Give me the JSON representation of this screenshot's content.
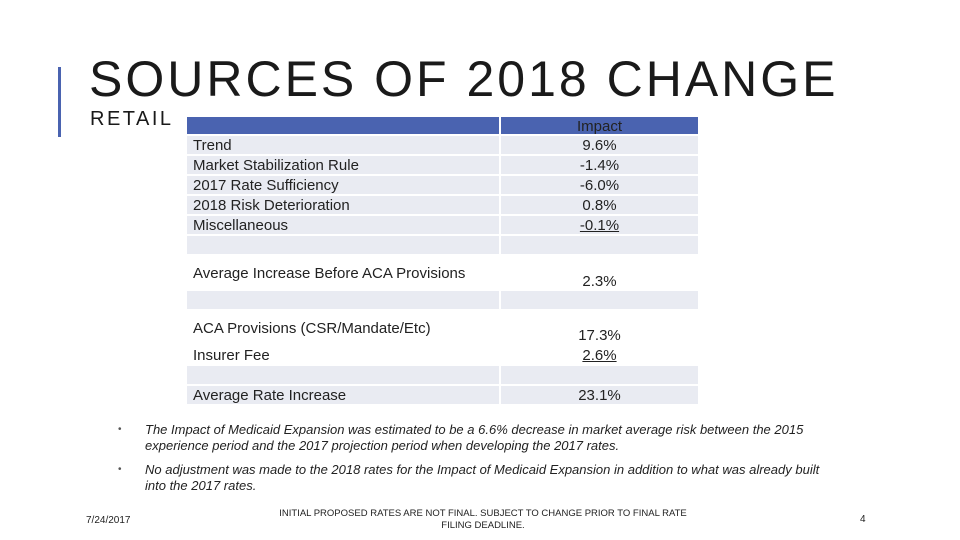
{
  "slide": {
    "title": "SOURCES OF 2018 CHANGE",
    "subtitle": "RETAIL"
  },
  "table": {
    "header": {
      "left": "",
      "right": "Impact"
    },
    "components_labels": [
      "Trend",
      "Market Stabilization Rule",
      "2017 Rate Sufficiency",
      "2018 Risk Deterioration",
      "Miscellaneous"
    ],
    "components_values": [
      "9.6%",
      "-1.4%",
      "-6.0%",
      "0.8%",
      "-0.1%"
    ],
    "avg_before": {
      "label": "Average Increase Before ACA Provisions",
      "value": "2.3%"
    },
    "aca": {
      "label": "ACA Provisions (CSR/Mandate/Etc)",
      "value": "17.3%"
    },
    "insurer_fee": {
      "label": "Insurer Fee",
      "value": "2.6%"
    },
    "avg_rate": {
      "label": "Average Rate Increase",
      "value": "23.1%"
    }
  },
  "bullets": [
    {
      "marker": "•",
      "text": "The Impact of Medicaid Expansion was estimated to be a 6.6% decrease in market average risk between the 2015 experience period and the 2017 projection period when developing the 2017 rates."
    },
    {
      "marker": "•",
      "text": "No adjustment was made to the 2018 rates for the Impact of Medicaid Expansion in addition to what was already built into the 2017 rates."
    }
  ],
  "footer": {
    "date": "7/24/2017",
    "note_line1": "INITIAL PROPOSED RATES ARE NOT FINAL. SUBJECT TO CHANGE PRIOR TO FINAL RATE",
    "note_line2": "FILING DEADLINE.",
    "page_number": "4"
  },
  "colors": {
    "accent": "#4a63b0",
    "row_band": "#e9ebf2"
  }
}
